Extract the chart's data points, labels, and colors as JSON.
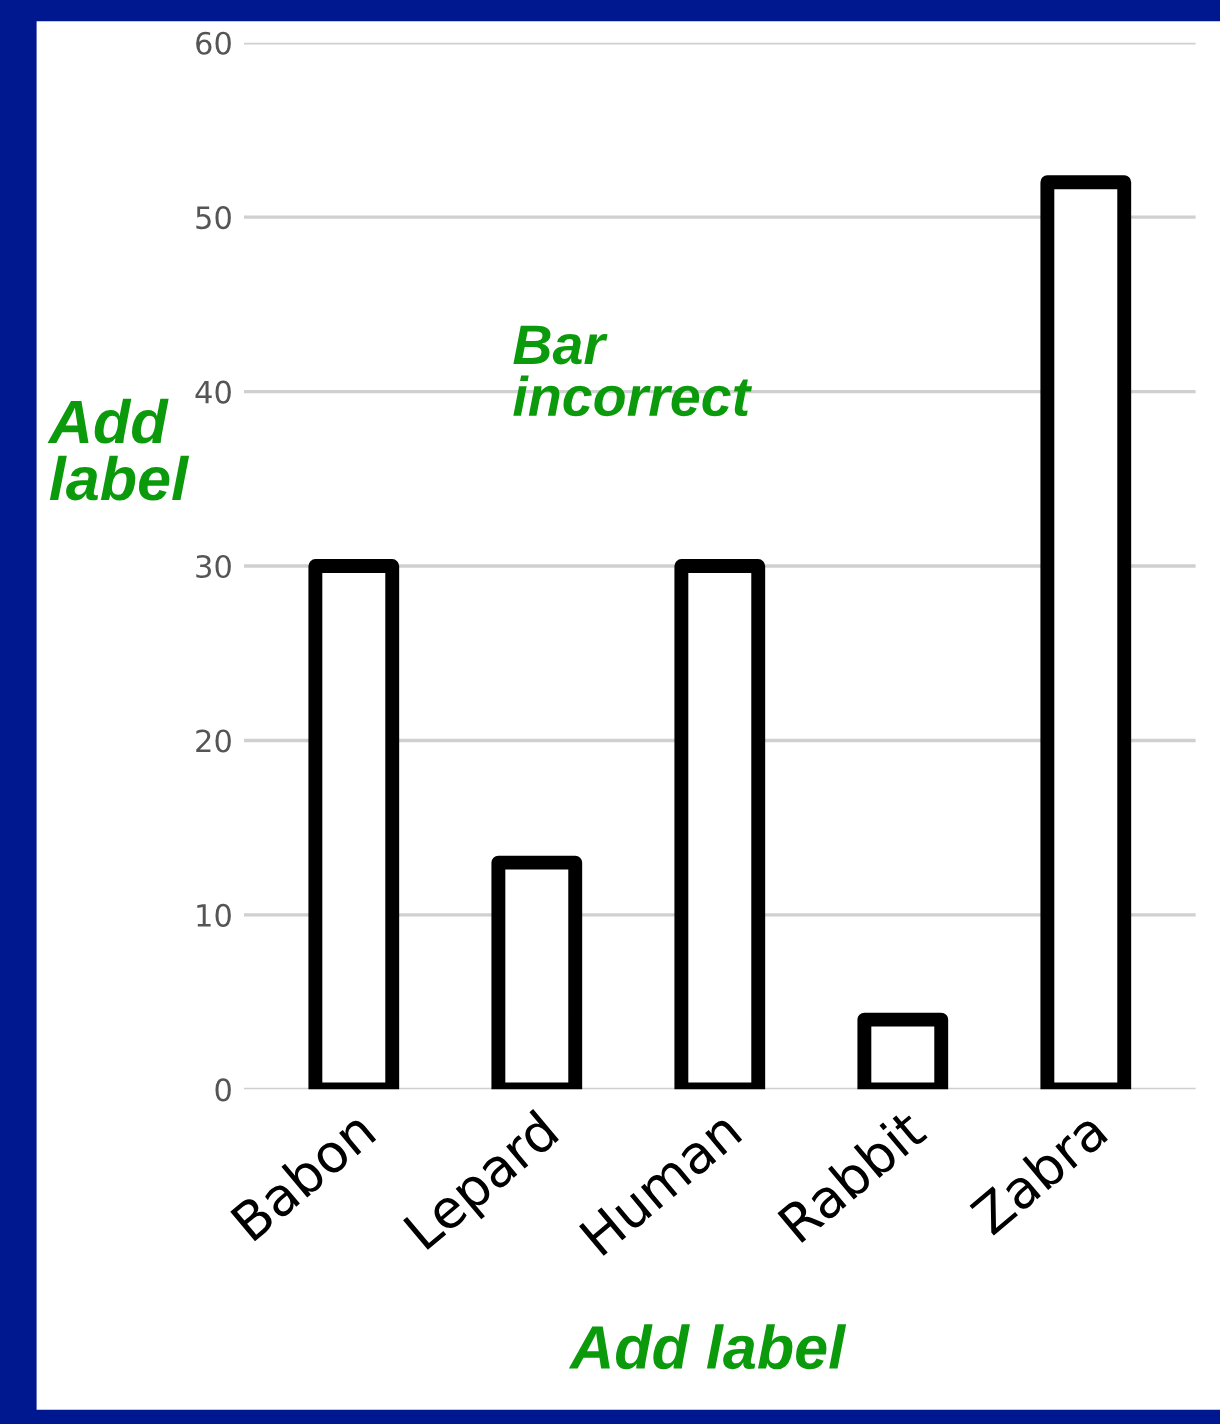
{
  "chart_data": {
    "type": "bar",
    "categories": [
      "Babon",
      "Lepard",
      "Human",
      "Rabbit",
      "Zabra"
    ],
    "values": [
      30,
      13,
      30,
      4,
      52
    ],
    "color": "#ffffff",
    "ylim": [
      0,
      60
    ],
    "yticks": [
      0,
      10,
      20,
      30,
      40,
      50,
      60
    ],
    "grid": "y",
    "annotations": [
      "Add label",
      "Bar incorrect",
      "Add label"
    ]
  }
}
